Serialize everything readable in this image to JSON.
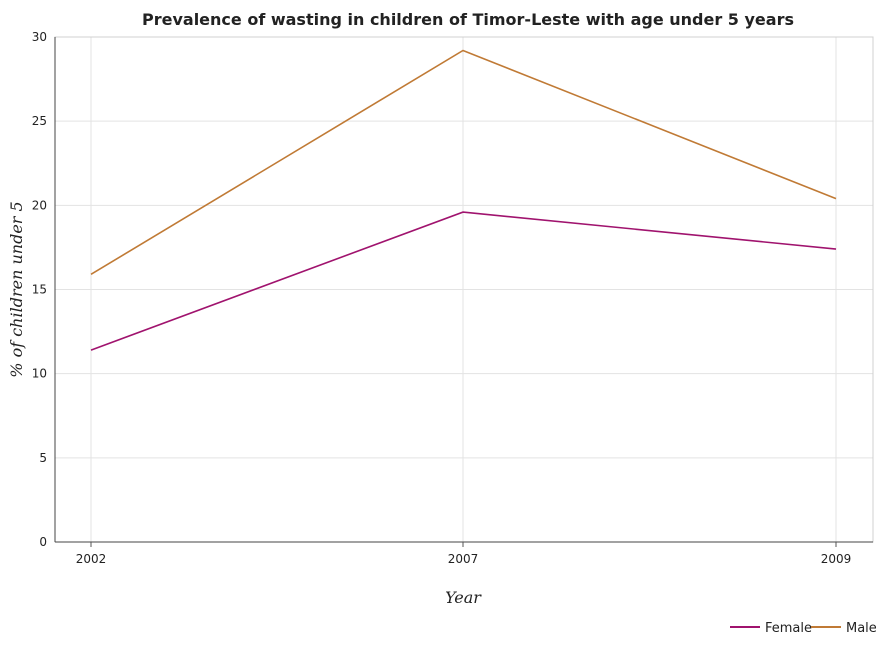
{
  "chart_data": {
    "type": "line",
    "title": "Prevalence of wasting in children of Timor-Leste with age under 5 years",
    "xlabel": "Year",
    "ylabel": "% of children under 5",
    "categories": [
      "2002",
      "2007",
      "2009"
    ],
    "ylim": [
      0,
      30
    ],
    "yticks": [
      "0",
      "5",
      "10",
      "15",
      "20",
      "25",
      "30"
    ],
    "grid": true,
    "legend_position": "bottom-right",
    "series": [
      {
        "name": "Female",
        "values": [
          11.4,
          19.6,
          17.4
        ],
        "color": "#a0136e"
      },
      {
        "name": "Male",
        "values": [
          15.9,
          29.2,
          20.4
        ],
        "color": "#c07a35"
      }
    ]
  }
}
